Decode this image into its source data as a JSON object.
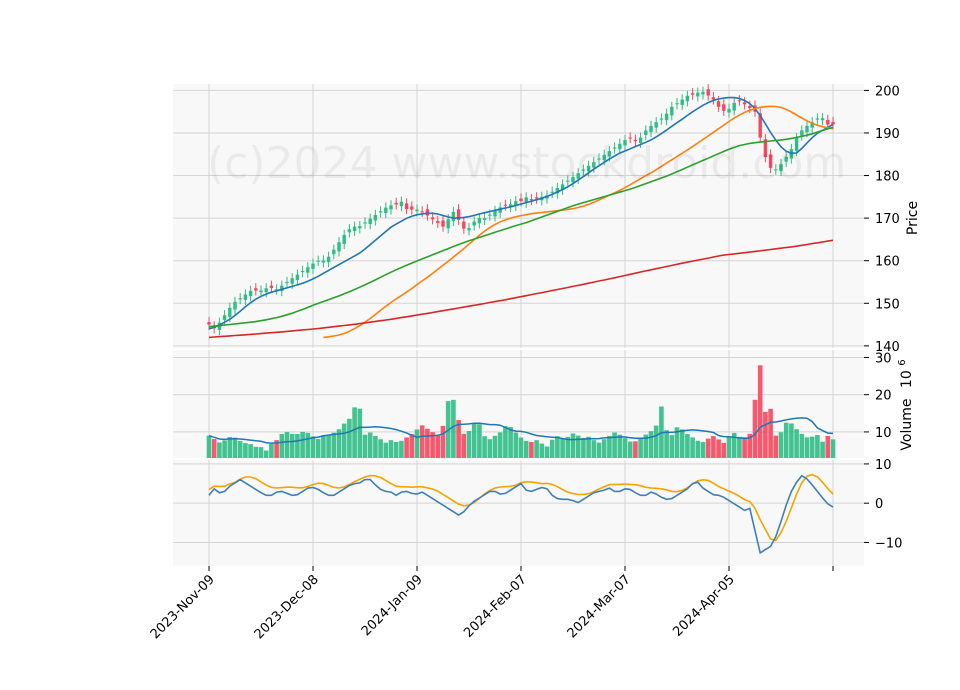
{
  "chart_data": {
    "type": "candlestick",
    "watermark": "(c)2024 www.stockdroid.com",
    "x_ticks": [
      {
        "label": "2023-Nov-09",
        "index": 0
      },
      {
        "label": "2023-Dec-08",
        "index": 20
      },
      {
        "label": "2024-Jan-09",
        "index": 40
      },
      {
        "label": "2024-Feb-07",
        "index": 60
      },
      {
        "label": "2024-Mar-07",
        "index": 80
      },
      {
        "label": "2024-Apr-05",
        "index": 100
      },
      {
        "label": "",
        "index": 120
      }
    ],
    "price_panel": {
      "ylabel": "Price",
      "ylim": [
        139.5,
        201.5
      ],
      "yticks": [
        "140",
        "150",
        "160",
        "170",
        "180",
        "190",
        "200"
      ],
      "close": [
        145,
        144,
        146,
        148,
        150,
        151,
        152,
        153,
        153,
        153,
        154,
        153,
        154,
        155,
        156,
        157,
        158,
        159,
        160,
        160,
        161,
        163,
        165,
        167,
        168,
        168,
        169,
        170,
        171,
        172,
        173,
        173,
        174,
        172,
        172,
        172,
        171,
        170,
        169,
        168,
        170,
        172,
        168,
        167,
        169,
        170,
        170,
        171,
        172,
        173,
        173,
        174,
        174,
        175,
        174,
        175,
        175,
        176,
        177,
        178,
        179,
        180,
        181,
        182,
        183,
        184,
        185,
        186,
        187,
        188,
        189,
        188,
        189,
        191,
        192,
        193,
        194,
        196,
        197,
        198,
        199,
        199,
        200,
        199,
        198,
        196,
        195,
        196,
        198,
        197,
        196,
        195,
        188,
        183,
        181,
        182,
        184,
        186,
        189,
        191,
        192,
        193,
        194,
        192,
        192
      ],
      "ma_series": [
        {
          "color": "#1f77b4",
          "values": [
            144,
            144.5,
            145.5,
            146.5,
            148,
            149.5,
            150.8,
            151.8,
            152.5,
            153,
            153.5,
            154,
            154.5,
            155.2,
            156,
            157,
            158,
            159,
            160,
            161,
            162,
            163.5,
            165,
            166.5,
            168,
            169,
            170,
            170.7,
            171,
            171.2,
            171,
            170.5,
            170,
            170,
            170.3,
            170.7,
            171.2,
            171.6,
            172,
            172.4,
            172.8,
            173.3,
            173.8,
            174.3,
            174.8,
            175.5,
            176.3,
            177.2,
            178.3,
            179.5,
            180.8,
            182,
            183.2,
            184.3,
            185.3,
            186,
            186.8,
            187.5,
            188.3,
            189.3,
            190.5,
            191.8,
            193,
            194.3,
            195.5,
            196.6,
            197.5,
            198,
            198.3,
            198.3,
            198,
            197,
            195.3,
            192.5,
            189.5,
            187,
            185.5,
            185,
            186.5,
            188.5,
            190,
            191,
            192
          ]
        },
        {
          "color": "#ff7f0e",
          "values": [
            142,
            142.2,
            142.5,
            143,
            143.8,
            144.8,
            146,
            147.3,
            148.7,
            150,
            151.2,
            152.3,
            153.5,
            154.8,
            156,
            157.3,
            158.7,
            160,
            161.4,
            162.8,
            164.3,
            165.8,
            167.2,
            168.3,
            169.2,
            169.8,
            170.3,
            170.7,
            171,
            171.2,
            171.4,
            171.6,
            171.8,
            172,
            172.3,
            172.7,
            173.3,
            174,
            174.8,
            175.6,
            176.4,
            177.3,
            178.3,
            179.3,
            180.3,
            181.3,
            182.4,
            183.5,
            184.6,
            185.7,
            186.8,
            188,
            189.2,
            190.4,
            191.6,
            192.8,
            193.9,
            194.8,
            195.5,
            196,
            196.2,
            196.3,
            196,
            195.3,
            194.3,
            193.3,
            192.4,
            191.7,
            191.3,
            191
          ]
        },
        {
          "color": "#2ca02c",
          "values": [
            144.5,
            144.8,
            145.1,
            145.4,
            145.7,
            146.2,
            146.8,
            147.6,
            148.6,
            149.7,
            150.7,
            151.7,
            152.8,
            154,
            155.3,
            156.7,
            158,
            159.2,
            160.3,
            161.4,
            162.5,
            163.6,
            164.6,
            165.5,
            166.4,
            167.3,
            168.2,
            169,
            170,
            171,
            172,
            173,
            173.8,
            174.6,
            175.4,
            176.2,
            177,
            178,
            179,
            180,
            181.2,
            182.4,
            183.6,
            184.8,
            186,
            187,
            187.6,
            187.9,
            188.2,
            188.5,
            189,
            189.6,
            190.5,
            191.3
          ]
        },
        {
          "color": "#d62728",
          "values": [
            142,
            142.6,
            143.3,
            144.1,
            145.1,
            146.3,
            147.7,
            149.2,
            150.7,
            152.4,
            154.1,
            155.9,
            157.8,
            159.6,
            161.3,
            162.3,
            163.4,
            164.8
          ]
        }
      ],
      "ma_spans": [
        [
          0,
          120
        ],
        [
          22,
          120
        ],
        [
          0,
          120
        ],
        [
          0,
          120
        ]
      ]
    },
    "volume_panel": {
      "ylabel": "Volume",
      "ylabel_exponent": "10",
      "ylabel_power": "6",
      "ylim": [
        3,
        32
      ],
      "yticks": [
        "10",
        "20",
        "30"
      ],
      "values": [
        9,
        8,
        7,
        8,
        9,
        8,
        7,
        7,
        6,
        6,
        5,
        7,
        8,
        10,
        10,
        9,
        10,
        10,
        9,
        8,
        9,
        9,
        10,
        11,
        13,
        14,
        20,
        9,
        10,
        9,
        8,
        7,
        8,
        7,
        8,
        9,
        10,
        12,
        11,
        10,
        9,
        12,
        20,
        18,
        10,
        9,
        12,
        13,
        9,
        8,
        9,
        10,
        12,
        11,
        9,
        8,
        7,
        8,
        7,
        6,
        8,
        9,
        8,
        9,
        10,
        8,
        9,
        8,
        7,
        8,
        9,
        10,
        9,
        8,
        7,
        8,
        9,
        10,
        11,
        17,
        10,
        9,
        12,
        10,
        9,
        8,
        7,
        8,
        9,
        8,
        7,
        9,
        10,
        8,
        9,
        10,
        33,
        15,
        17,
        9,
        10,
        13,
        12,
        10,
        9,
        8,
        10,
        7,
        9,
        8
      ]
    },
    "macd_panel": {
      "ylim": [
        -16,
        11
      ],
      "yticks": [
        "−10",
        "0",
        "10"
      ],
      "macd": [
        2,
        4,
        2,
        4,
        5,
        6,
        5,
        4,
        3,
        2,
        2,
        3,
        3,
        2,
        2,
        3,
        4,
        4,
        3,
        2,
        2,
        3,
        4,
        5,
        5,
        6,
        6,
        4,
        3,
        3,
        2,
        3,
        3,
        2,
        3,
        2,
        1,
        0,
        -1,
        -2,
        -3,
        -2,
        0,
        1,
        2,
        3,
        3,
        2,
        3,
        4,
        5,
        3,
        3,
        4,
        4,
        2,
        1,
        1,
        1,
        0,
        1,
        2,
        3,
        3,
        4,
        3,
        3,
        4,
        3,
        2,
        2,
        3,
        2,
        1,
        1,
        2,
        3,
        4,
        6,
        4,
        3,
        2,
        2,
        1,
        0,
        -1,
        -2,
        -1,
        -13,
        -12,
        -11,
        -8,
        -3,
        2,
        5,
        7,
        6,
        4,
        2,
        0,
        -1
      ]
    }
  }
}
